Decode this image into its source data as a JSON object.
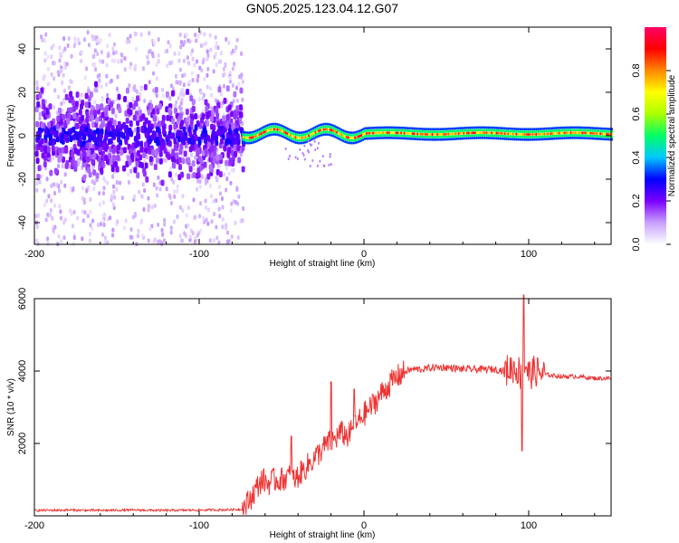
{
  "title": "GN05.2025.123.04.12.G07",
  "chart_data": [
    {
      "type": "heatmap",
      "name": "spectrogram",
      "xlabel": "Height of straight line (km)",
      "ylabel": "Frequency (Hz)",
      "xlim": [
        -200,
        150
      ],
      "ylim": [
        -50,
        50
      ],
      "xticks": [
        -200,
        -100,
        0,
        100
      ],
      "yticks": [
        -40,
        -20,
        0,
        20,
        40
      ],
      "colorbar": {
        "label": "Normalized spectral amplitude",
        "range": [
          0.0,
          1.0
        ],
        "ticks": [
          0.0,
          0.2,
          0.4,
          0.6,
          0.8
        ],
        "tick_labels": [
          "0.0",
          "0.2",
          "0.4",
          "0.6",
          "0.8"
        ],
        "colors": [
          "#ffffff",
          "#c8a0ff",
          "#7a00ff",
          "#0000ff",
          "#00c8ff",
          "#00ff66",
          "#aaff00",
          "#ffff00",
          "#ff8800",
          "#ff0000",
          "#ff0066"
        ]
      },
      "regions": [
        {
          "name": "scattered noise",
          "x_range": [
            -200,
            -74
          ],
          "freq_range": [
            -50,
            48
          ],
          "amplitude": 0.05
        },
        {
          "name": "broad band",
          "x_range": [
            -200,
            -74
          ],
          "freq_range": [
            -12,
            12
          ],
          "amplitude": 0.2
        },
        {
          "name": "tracked signal",
          "x_range": [
            -74,
            150
          ],
          "freq_range": [
            -3,
            5
          ],
          "amplitude": 0.85
        }
      ]
    },
    {
      "type": "line",
      "name": "snr",
      "xlabel": "Height of straight line (km)",
      "ylabel": "SNR (10 * v/v)",
      "xlim": [
        -200,
        150
      ],
      "ylim": [
        0,
        6000
      ],
      "xticks": [
        -200,
        -100,
        0,
        100
      ],
      "yticks": [
        2000,
        4000,
        6000
      ],
      "color": "#ee3333",
      "series": [
        {
          "name": "SNR",
          "x": [
            -200,
            -180,
            -160,
            -140,
            -120,
            -100,
            -80,
            -74,
            -70,
            -66,
            -62,
            -58,
            -54,
            -50,
            -46,
            -42,
            -38,
            -34,
            -30,
            -26,
            -22,
            -18,
            -14,
            -10,
            -6,
            -2,
            2,
            6,
            10,
            14,
            18,
            22,
            26,
            30,
            36,
            42,
            50,
            60,
            70,
            80,
            86,
            90,
            94,
            96,
            98,
            100,
            104,
            110,
            120,
            130,
            140,
            150
          ],
          "y": [
            150,
            160,
            150,
            160,
            150,
            160,
            170,
            180,
            400,
            700,
            1000,
            900,
            1000,
            1000,
            1100,
            1000,
            1200,
            1400,
            1600,
            1800,
            2000,
            2100,
            2300,
            2200,
            2400,
            2700,
            2900,
            3100,
            3350,
            3550,
            3750,
            3900,
            4000,
            4050,
            4050,
            4100,
            4100,
            4050,
            4050,
            4050,
            4000,
            4100,
            4000,
            3800,
            4200,
            3900,
            4000,
            3900,
            3850,
            3850,
            3800,
            3800
          ]
        }
      ],
      "annotations": {
        "spikes": [
          {
            "x": -44,
            "y": 2200
          },
          {
            "x": -20,
            "y": 3700
          },
          {
            "x": -6,
            "y": 3500
          },
          {
            "x": 97,
            "y": 6100
          },
          {
            "x": 96,
            "y": 1800
          }
        ]
      }
    }
  ]
}
